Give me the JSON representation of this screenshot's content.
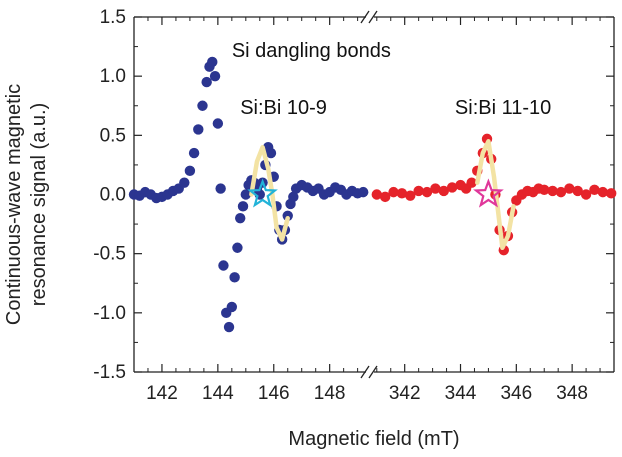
{
  "chart_data": {
    "type": "scatter",
    "xlabel": "Magnetic field (mT)",
    "ylabel_lines": [
      "Continuous-wave magnetic",
      "resonance signal (a.u.)"
    ],
    "ylim": [
      -1.5,
      1.5
    ],
    "yticks": [
      1.5,
      1.0,
      0.5,
      0.0,
      -0.5,
      -1.0,
      -1.5
    ],
    "ytick_labels": [
      "1.5",
      "1.0",
      "0.5",
      "0.0",
      "-0.5",
      "-1.0",
      "-1.5"
    ],
    "segments": [
      {
        "xlim": [
          141.0,
          149.3
        ],
        "xticks": [
          142,
          144,
          146,
          148
        ],
        "xtick_labels": [
          "142",
          "144",
          "146",
          "148"
        ]
      },
      {
        "xlim": [
          340.9,
          349.5
        ],
        "xticks": [
          342,
          344,
          346,
          348
        ],
        "xtick_labels": [
          "342",
          "344",
          "346",
          "348"
        ]
      }
    ],
    "annotations": [
      {
        "text": "Si dangling bonds",
        "x": 144.5,
        "y": 1.16,
        "segment": 0
      },
      {
        "text": "Si:Bi 10-9",
        "x": 144.8,
        "y": 0.68,
        "segment": 0
      },
      {
        "text": "Si:Bi 11-10",
        "x": 343.8,
        "y": 0.68,
        "segment": 1
      }
    ],
    "series": [
      {
        "color": "#2b3590",
        "segment": 0,
        "x": [
          141.0,
          141.2,
          141.4,
          141.6,
          141.8,
          142.0,
          142.2,
          142.4,
          142.6,
          142.8,
          143.0,
          143.15,
          143.3,
          143.45,
          143.6,
          143.7,
          143.8,
          143.9,
          144.0,
          144.1,
          144.2,
          144.3,
          144.4,
          144.5,
          144.6,
          144.7,
          144.8,
          144.9,
          145.0,
          145.1,
          145.2,
          145.3,
          145.4,
          145.5,
          145.6,
          145.7,
          145.8,
          145.9,
          146.0,
          146.1,
          146.2,
          146.3,
          146.4,
          146.5,
          146.6,
          146.7,
          146.8,
          147.0,
          147.2,
          147.4,
          147.6,
          147.8,
          148.0,
          148.2,
          148.4,
          148.6,
          148.8,
          149.0,
          149.2
        ],
        "y": [
          0.0,
          -0.01,
          0.02,
          0.0,
          -0.03,
          -0.02,
          0.0,
          0.03,
          0.05,
          0.1,
          0.2,
          0.35,
          0.55,
          0.75,
          0.95,
          1.08,
          1.12,
          1.0,
          0.6,
          0.05,
          -0.6,
          -1.0,
          -1.12,
          -0.95,
          -0.7,
          -0.45,
          -0.2,
          -0.1,
          0.0,
          0.08,
          0.12,
          0.1,
          0.05,
          0.0,
          0.1,
          0.25,
          0.4,
          0.35,
          0.15,
          -0.1,
          -0.3,
          -0.38,
          -0.3,
          -0.18,
          -0.08,
          -0.02,
          0.05,
          0.08,
          0.06,
          0.03,
          0.05,
          0.0,
          0.02,
          0.06,
          0.04,
          0.0,
          0.03,
          0.01,
          0.02
        ]
      },
      {
        "color": "#e5232a",
        "segment": 1,
        "x": [
          341.0,
          341.3,
          341.6,
          341.9,
          342.2,
          342.5,
          342.8,
          343.1,
          343.4,
          343.7,
          344.0,
          344.2,
          344.4,
          344.6,
          344.8,
          344.95,
          345.1,
          345.25,
          345.4,
          345.55,
          345.7,
          345.85,
          346.0,
          346.2,
          346.4,
          346.6,
          346.8,
          347.0,
          347.3,
          347.6,
          347.9,
          348.2,
          348.5,
          348.8,
          349.1,
          349.4
        ],
        "y": [
          0.0,
          -0.02,
          0.02,
          0.01,
          -0.01,
          0.03,
          0.02,
          0.05,
          0.03,
          0.06,
          0.08,
          0.05,
          0.1,
          0.2,
          0.35,
          0.47,
          0.3,
          0.0,
          -0.3,
          -0.47,
          -0.35,
          -0.15,
          -0.05,
          0.0,
          0.03,
          0.02,
          0.05,
          0.04,
          0.03,
          0.02,
          0.05,
          0.03,
          0.0,
          0.04,
          0.02,
          0.01
        ]
      }
    ],
    "fit_lines": [
      {
        "segment": 0,
        "x": [
          145.2,
          145.4,
          145.6,
          145.8,
          145.95,
          146.1,
          146.3,
          146.5
        ],
        "y": [
          0.0,
          0.28,
          0.4,
          0.22,
          0.0,
          -0.28,
          -0.38,
          -0.2
        ]
      },
      {
        "segment": 1,
        "x": [
          344.6,
          344.8,
          345.0,
          345.2,
          345.35,
          345.5,
          345.7,
          345.9
        ],
        "y": [
          0.1,
          0.35,
          0.45,
          0.15,
          -0.15,
          -0.45,
          -0.35,
          -0.1
        ]
      }
    ],
    "markers": [
      {
        "shape": "star",
        "segment": 0,
        "x": 145.6,
        "y": 0.0,
        "color": "#22b3d8"
      },
      {
        "shape": "star",
        "segment": 1,
        "x": 345.0,
        "y": 0.0,
        "color": "#e0379a"
      }
    ]
  }
}
